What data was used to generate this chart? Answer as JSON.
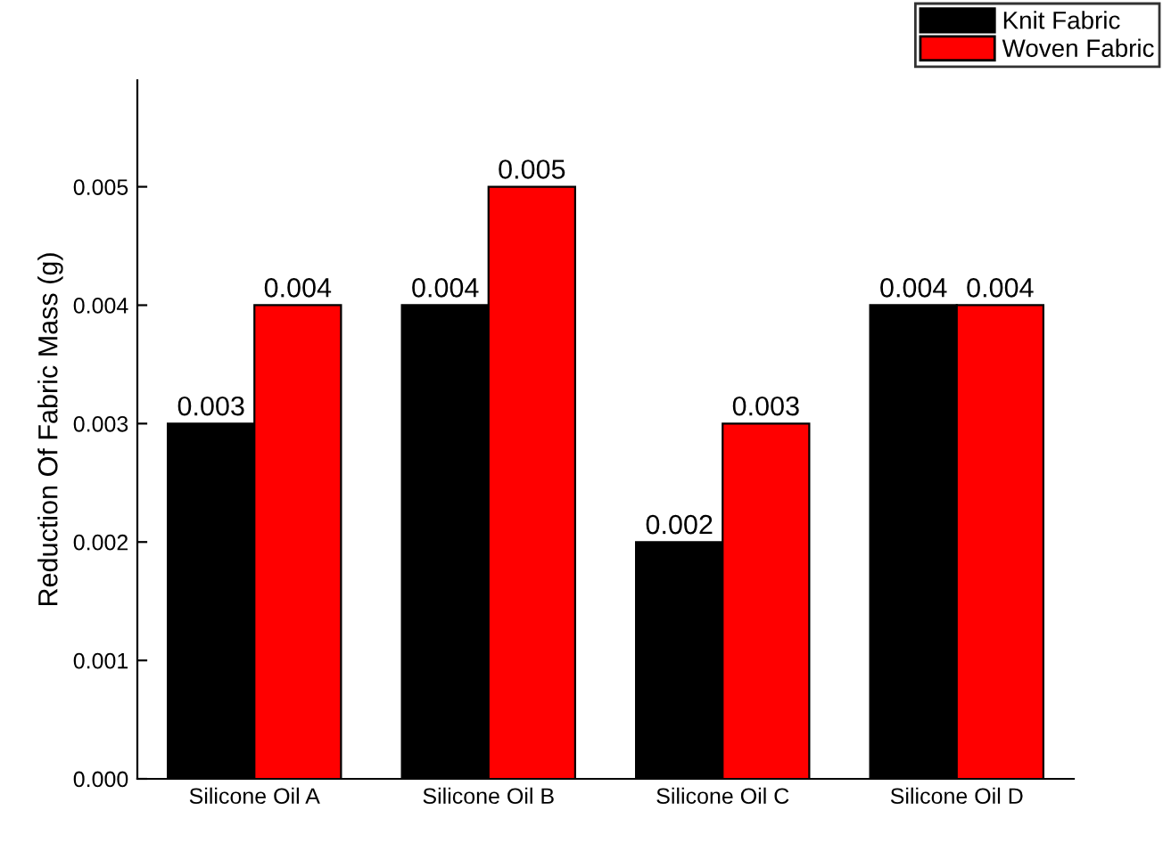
{
  "chart_data": {
    "type": "bar",
    "ylabel": "Reduction Of Fabric Mass (g)",
    "categories": [
      "Silicone Oil A",
      "Silicone Oil B",
      "Silicone Oil C",
      "Silicone Oil D"
    ],
    "series": [
      {
        "name": "Knit Fabric",
        "color": "#000000",
        "values": [
          0.003,
          0.004,
          0.002,
          0.004
        ]
      },
      {
        "name": "Woven Fabric",
        "color": "#ff0000",
        "values": [
          0.004,
          0.005,
          0.003,
          0.004
        ]
      }
    ],
    "ylim": [
      0,
      0.0059
    ],
    "yticks": [
      {
        "value": 0,
        "label": "0.000"
      },
      {
        "value": 0.001,
        "label": "0.001"
      },
      {
        "value": 0.002,
        "label": "0.002"
      },
      {
        "value": 0.003,
        "label": "0.003"
      },
      {
        "value": 0.004,
        "label": "0.004"
      },
      {
        "value": 0.005,
        "label": "0.005"
      }
    ],
    "data_labels": true,
    "grid": false,
    "legend": "top right"
  }
}
